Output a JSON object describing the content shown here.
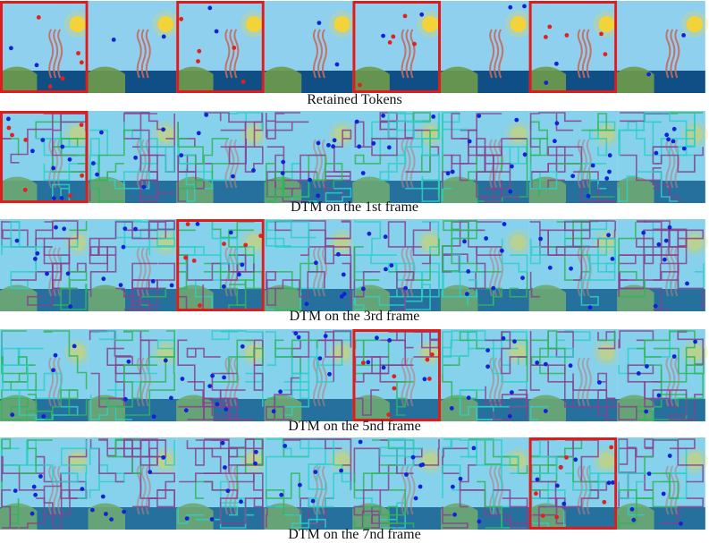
{
  "figure": {
    "rows": [
      {
        "caption": "Retained Tokens",
        "style": "scene",
        "highlight_frame": [
          1,
          3,
          5,
          7
        ]
      },
      {
        "caption": "DTM on the 1st frame",
        "style": "merged",
        "highlight_frame": [
          1
        ]
      },
      {
        "caption": "DTM on the 3rd frame",
        "style": "merged",
        "highlight_frame": [
          3
        ]
      },
      {
        "caption": "DTM on the 5nd frame",
        "style": "merged",
        "highlight_frame": [
          5
        ]
      },
      {
        "caption": "DTM on the 7nd frame",
        "style": "merged",
        "highlight_frame": [
          7
        ]
      }
    ],
    "frames_per_row": 8,
    "colors": {
      "sky": "#8fd0ee",
      "sea": "#0f4f86",
      "land": "#6f9a4a",
      "sun": "#f2d43a",
      "highlight_box": "#e11b1b",
      "token_blue": "#1222d6",
      "token_red": "#e3201b",
      "merge_purple": "#8a3f8f",
      "merge_teal": "#2bd0c8",
      "merge_green": "#2fb65a"
    }
  }
}
